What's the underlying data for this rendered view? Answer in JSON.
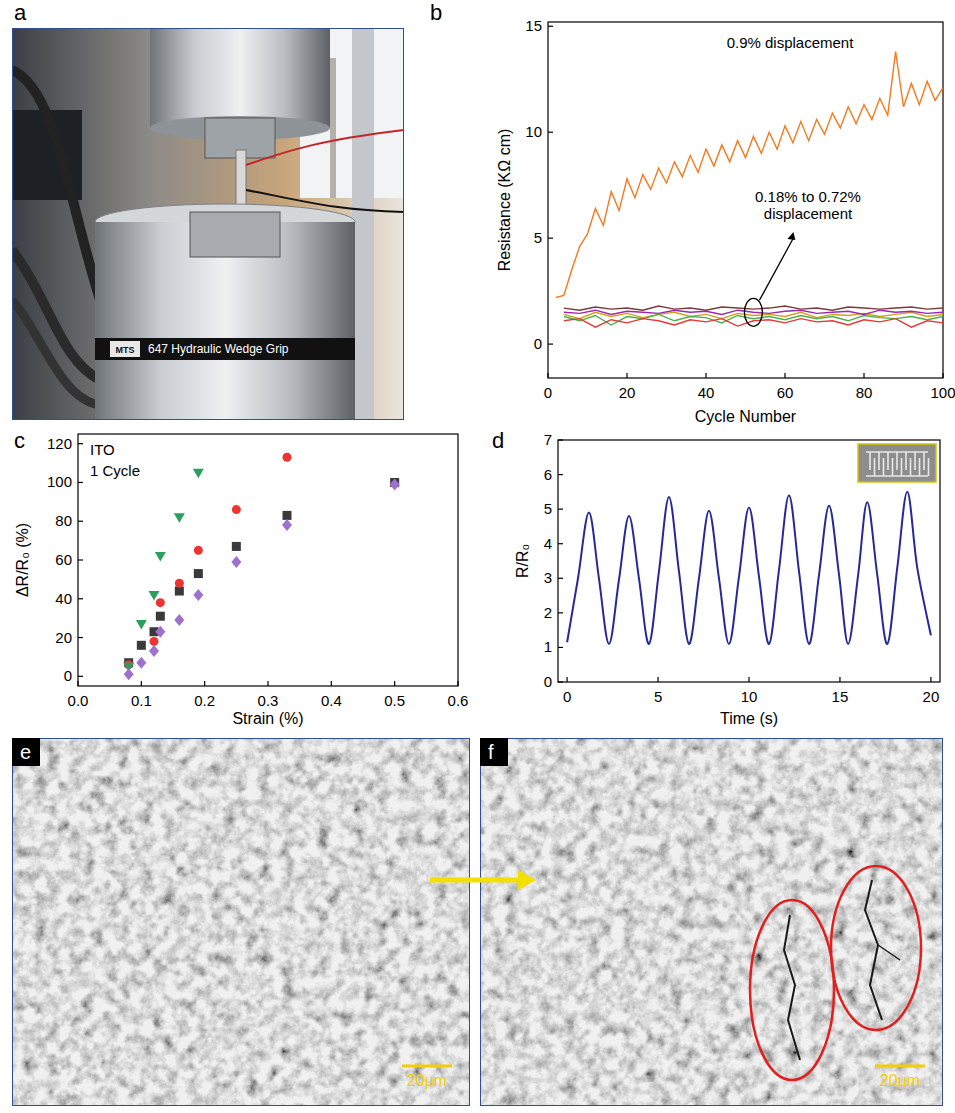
{
  "figure": {
    "panels": [
      {
        "letter": "a",
        "labels": [
          "MTS",
          "647 Hydraulic Wedge Grip"
        ]
      },
      {
        "letter": "b"
      },
      {
        "letter": "c"
      },
      {
        "letter": "d"
      },
      {
        "letter": "e",
        "scale_bar": "20μm"
      },
      {
        "letter": "f",
        "scale_bar": "20μm"
      }
    ]
  },
  "chart_data": [
    {
      "type": "line",
      "x_label": "Cycle Number",
      "y_label": "Resistance (KΩ cm)",
      "annotations": [
        "0.9% displacement",
        "0.18% to 0.72% displacement"
      ],
      "xlim": [
        0,
        100
      ],
      "xticks": [
        0,
        20,
        40,
        60,
        80,
        100
      ],
      "ylim": [
        -1.6,
        15.2
      ],
      "yticks": [
        0,
        5,
        10,
        15
      ],
      "grid": false,
      "series": [
        {
          "color": "#f47a20",
          "line_style": "solid",
          "x": [
            2,
            4,
            6,
            8,
            10,
            12,
            14,
            16,
            18,
            20,
            22,
            24,
            26,
            28,
            30,
            32,
            34,
            36,
            38,
            40,
            42,
            44,
            46,
            48,
            50,
            52,
            54,
            56,
            58,
            60,
            62,
            64,
            66,
            68,
            70,
            72,
            74,
            76,
            78,
            80,
            82,
            84,
            86,
            88,
            90,
            92,
            94,
            96,
            98,
            100
          ],
          "values": [
            2.2,
            2.3,
            3.5,
            4.6,
            5.2,
            6.4,
            5.6,
            7.2,
            6.3,
            7.8,
            6.9,
            8.0,
            7.3,
            8.3,
            7.6,
            8.6,
            7.9,
            8.9,
            8.1,
            9.2,
            8.4,
            9.4,
            8.6,
            9.6,
            8.8,
            9.8,
            9.0,
            10.0,
            9.2,
            10.3,
            9.5,
            10.5,
            9.6,
            10.6,
            9.9,
            10.9,
            10.2,
            11.2,
            10.4,
            11.3,
            10.6,
            11.6,
            10.8,
            13.8,
            11.2,
            12.3,
            11.3,
            12.4,
            11.5,
            12.1
          ]
        },
        {
          "color": "#7b3b3b",
          "line_style": "solid",
          "x": [
            4,
            8,
            12,
            16,
            20,
            24,
            28,
            32,
            36,
            40,
            44,
            48,
            52,
            56,
            60,
            64,
            68,
            72,
            76,
            80,
            84,
            88,
            92,
            96,
            100
          ],
          "values": [
            1.7,
            1.6,
            1.75,
            1.65,
            1.7,
            1.6,
            1.8,
            1.65,
            1.7,
            1.6,
            1.75,
            1.7,
            1.65,
            1.7,
            1.8,
            1.65,
            1.7,
            1.6,
            1.75,
            1.7,
            1.65,
            1.7,
            1.75,
            1.65,
            1.7
          ]
        },
        {
          "color": "#d4a017",
          "line_style": "solid",
          "x": [
            4,
            8,
            12,
            16,
            20,
            24,
            28,
            32,
            36,
            40,
            44,
            48,
            52,
            56,
            60,
            64,
            68,
            72,
            76,
            80,
            84,
            88,
            92,
            96,
            100
          ],
          "values": [
            1.4,
            1.2,
            1.5,
            1.3,
            1.45,
            1.25,
            1.4,
            1.5,
            1.3,
            1.4,
            1.2,
            1.45,
            1.35,
            1.4,
            1.3,
            1.5,
            1.25,
            1.4,
            1.35,
            1.45,
            1.3,
            1.4,
            1.5,
            1.3,
            1.4
          ]
        },
        {
          "color": "#4caf50",
          "line_style": "solid",
          "x": [
            4,
            8,
            12,
            16,
            20,
            24,
            28,
            32,
            36,
            40,
            44,
            48,
            52,
            56,
            60,
            64,
            68,
            72,
            76,
            80,
            84,
            88,
            92,
            96,
            100
          ],
          "values": [
            1.3,
            1.1,
            1.35,
            0.9,
            1.3,
            1.2,
            1.4,
            1.1,
            1.3,
            1.25,
            1.0,
            1.35,
            1.2,
            1.3,
            1.15,
            1.35,
            1.2,
            1.3,
            1.1,
            1.35,
            1.25,
            1.2,
            1.3,
            1.15,
            1.3
          ]
        },
        {
          "color": "#e53935",
          "line_style": "solid",
          "x": [
            4,
            8,
            12,
            16,
            20,
            24,
            28,
            32,
            36,
            40,
            44,
            48,
            52,
            56,
            60,
            64,
            68,
            72,
            76,
            80,
            84,
            88,
            92,
            96,
            100
          ],
          "values": [
            1.1,
            1.2,
            0.8,
            1.15,
            1.0,
            1.2,
            1.1,
            0.9,
            1.15,
            1.05,
            1.2,
            0.85,
            1.1,
            1.15,
            1.0,
            1.2,
            1.05,
            1.1,
            0.9,
            1.15,
            1.05,
            1.2,
            0.8,
            1.1,
            1.0
          ]
        },
        {
          "color": "#9c27b0",
          "line_style": "solid",
          "x": [
            4,
            8,
            12,
            16,
            20,
            24,
            28,
            32,
            36,
            40,
            44,
            48,
            52,
            56,
            60,
            64,
            68,
            72,
            76,
            80,
            84,
            88,
            92,
            96,
            100
          ],
          "values": [
            1.5,
            1.45,
            1.6,
            1.4,
            1.55,
            1.5,
            1.45,
            1.6,
            1.5,
            1.55,
            1.4,
            1.6,
            1.5,
            1.45,
            1.55,
            1.6,
            1.45,
            1.5,
            1.55,
            1.4,
            1.6,
            1.5,
            1.55,
            1.45,
            1.5
          ]
        }
      ]
    },
    {
      "type": "scatter",
      "x_label": "Strain (%)",
      "y_label": "ΔR/R₀ (%)",
      "annotations": [
        "ITO",
        "1 Cycle"
      ],
      "xlim": [
        0,
        0.6
      ],
      "xticks": [
        {
          "value": 0,
          "label": "0.0"
        },
        0.1,
        0.2,
        0.3,
        0.4,
        0.5,
        0.6
      ],
      "ylim": [
        -5,
        125
      ],
      "yticks": [
        0,
        20,
        40,
        60,
        80,
        100,
        120
      ],
      "grid": false,
      "series": [
        {
          "color": "#3a3a3a",
          "marker": "square",
          "x": [
            0.08,
            0.1,
            0.12,
            0.13,
            0.16,
            0.19,
            0.25,
            0.33,
            0.5
          ],
          "values": [
            7,
            16,
            23,
            31,
            44,
            53,
            67,
            83,
            100
          ]
        },
        {
          "color": "#ee3333",
          "marker": "circle",
          "x": [
            0.08,
            0.12,
            0.13,
            0.16,
            0.19,
            0.25,
            0.33
          ],
          "values": [
            6,
            18,
            38,
            48,
            65,
            86,
            113
          ]
        },
        {
          "color": "#2e9e5e",
          "marker": "triangle-down",
          "x": [
            0.08,
            0.1,
            0.12,
            0.13,
            0.16,
            0.19
          ],
          "values": [
            5,
            27,
            42,
            62,
            82,
            105
          ]
        },
        {
          "color": "#a070d0",
          "marker": "diamond",
          "x": [
            0.08,
            0.1,
            0.12,
            0.13,
            0.16,
            0.19,
            0.25,
            0.33,
            0.5
          ],
          "values": [
            1,
            7,
            13,
            23,
            29,
            42,
            59,
            78,
            99
          ]
        }
      ]
    },
    {
      "type": "line",
      "x_label": "Time (s)",
      "y_label": "R/R₀",
      "xlim": [
        -0.5,
        20.5
      ],
      "xticks": [
        0,
        5,
        10,
        15,
        20
      ],
      "ylim": [
        0,
        7
      ],
      "yticks": [
        0,
        1,
        2,
        3,
        4,
        5,
        6,
        7
      ],
      "grid": false,
      "x": [
        0,
        0.6,
        1.2,
        1.75,
        2.3,
        2.85,
        3.4,
        3.95,
        4.5,
        5.05,
        5.6,
        6.15,
        6.7,
        7.25,
        7.8,
        8.35,
        8.9,
        9.45,
        10.0,
        10.55,
        11.1,
        11.65,
        12.2,
        12.75,
        13.3,
        13.85,
        14.4,
        14.95,
        15.45,
        16.0,
        16.5,
        17.05,
        17.6,
        18.15,
        18.7,
        19.25,
        20.0
      ],
      "series": [
        {
          "color": "#27289a",
          "line_style": "smooth",
          "values": [
            1.15,
            3.0,
            4.9,
            3.0,
            1.1,
            2.95,
            4.8,
            3.0,
            1.1,
            3.2,
            5.35,
            3.2,
            1.1,
            3.0,
            4.95,
            3.0,
            1.1,
            3.05,
            5.05,
            3.05,
            1.1,
            3.25,
            5.4,
            3.2,
            1.1,
            3.1,
            5.1,
            3.1,
            1.1,
            3.1,
            5.2,
            3.1,
            1.1,
            3.3,
            5.5,
            3.3,
            1.35
          ]
        }
      ]
    }
  ]
}
